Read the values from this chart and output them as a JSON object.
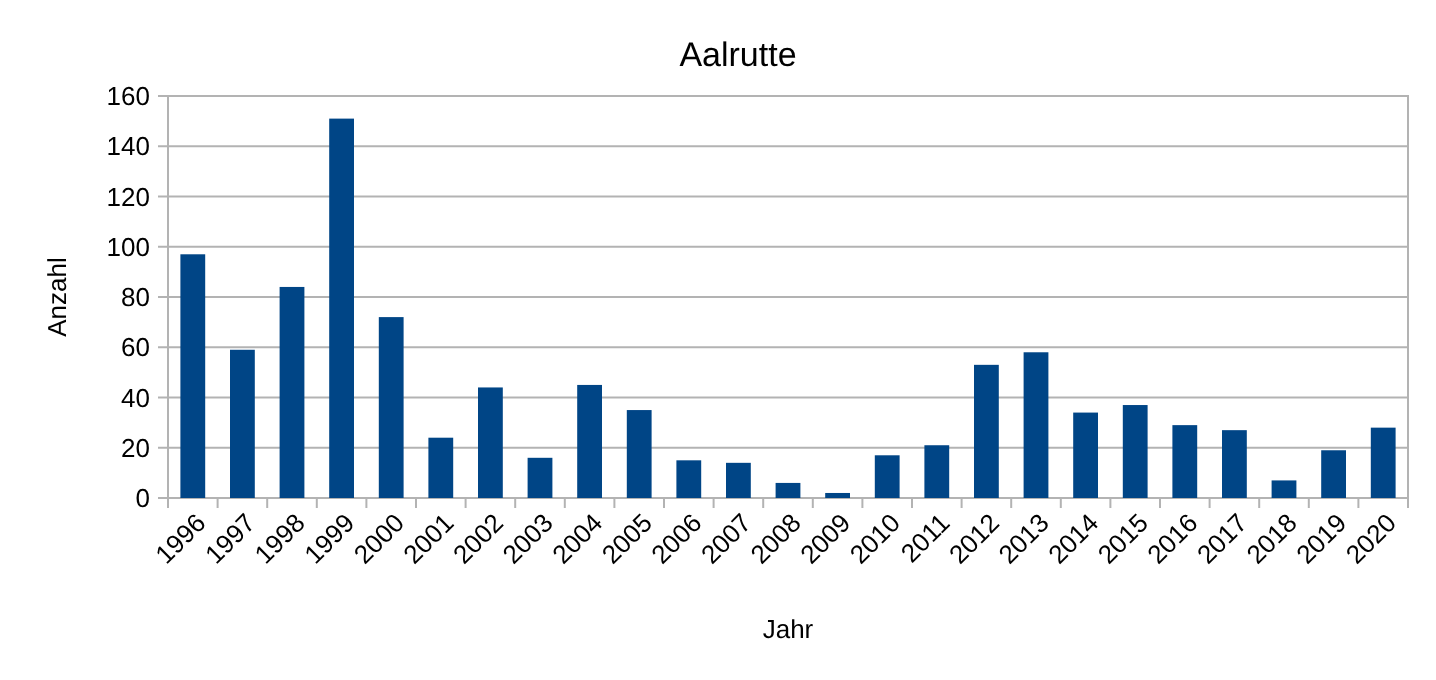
{
  "chart_data": {
    "type": "bar",
    "title": "Aalrutte",
    "xlabel": "Jahr",
    "ylabel": "Anzahl",
    "categories": [
      "1996",
      "1997",
      "1998",
      "1999",
      "2000",
      "2001",
      "2002",
      "2003",
      "2004",
      "2005",
      "2006",
      "2007",
      "2008",
      "2009",
      "2010",
      "2011",
      "2012",
      "2013",
      "2014",
      "2015",
      "2016",
      "2017",
      "2018",
      "2019",
      "2020"
    ],
    "values": [
      97,
      59,
      84,
      151,
      72,
      24,
      44,
      16,
      45,
      35,
      15,
      14,
      6,
      2,
      17,
      21,
      53,
      58,
      34,
      37,
      29,
      27,
      7,
      19,
      28
    ],
    "color": "#004586",
    "ylim": [
      0,
      160
    ],
    "yticks": [
      0,
      20,
      40,
      60,
      80,
      100,
      120,
      140,
      160
    ],
    "grid": "y"
  }
}
